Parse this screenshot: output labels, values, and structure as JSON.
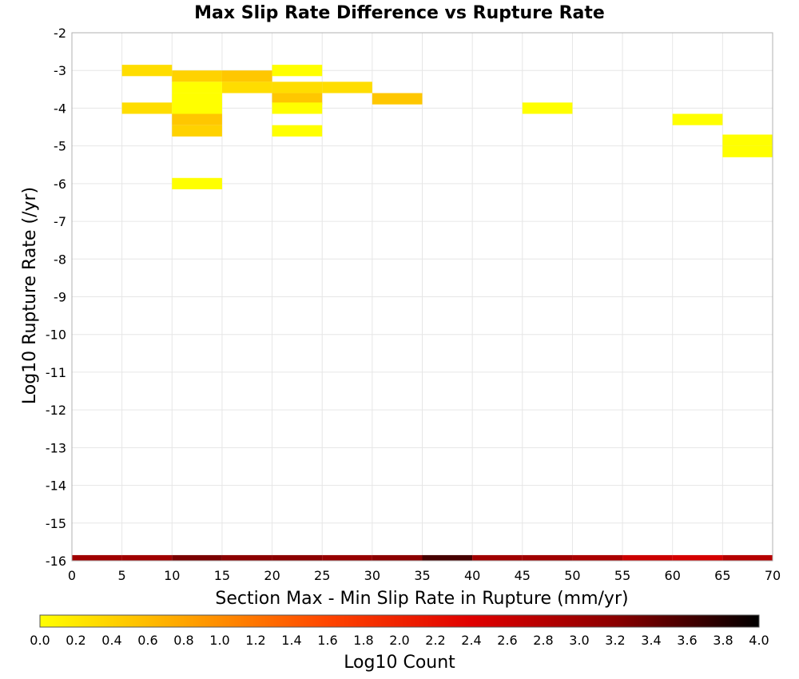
{
  "chart_data": {
    "type": "heatmap",
    "title": "Max Slip Rate Difference vs Rupture Rate",
    "xlabel": "Section Max - Min Slip Rate in Rupture (mm/yr)",
    "ylabel": "Log10 Rupture Rate (/yr)",
    "xlim": [
      0,
      70
    ],
    "ylim": [
      -16,
      -2
    ],
    "x_ticks": [
      0,
      5,
      10,
      15,
      20,
      25,
      30,
      35,
      40,
      45,
      50,
      55,
      60,
      65,
      70
    ],
    "y_ticks": [
      -2,
      -3,
      -4,
      -5,
      -6,
      -7,
      -8,
      -9,
      -10,
      -11,
      -12,
      -13,
      -14,
      -15,
      -16
    ],
    "grid": true,
    "x_bin_width": 5,
    "y_bin_height": 0.3,
    "cells": [
      {
        "x": 5,
        "y": -3.0,
        "value": 0.3
      },
      {
        "x": 20,
        "y": -3.0,
        "value": 0.0
      },
      {
        "x": 10,
        "y": -3.15,
        "value": 0.4
      },
      {
        "x": 15,
        "y": -3.15,
        "value": 0.5
      },
      {
        "x": 10,
        "y": -3.45,
        "value": 0.0
      },
      {
        "x": 15,
        "y": -3.45,
        "value": 0.3
      },
      {
        "x": 20,
        "y": -3.45,
        "value": 0.3
      },
      {
        "x": 25,
        "y": -3.45,
        "value": 0.3
      },
      {
        "x": 10,
        "y": -3.75,
        "value": 0.0
      },
      {
        "x": 20,
        "y": -3.75,
        "value": 0.5
      },
      {
        "x": 30,
        "y": -3.75,
        "value": 0.5
      },
      {
        "x": 5,
        "y": -4.0,
        "value": 0.3
      },
      {
        "x": 10,
        "y": -4.0,
        "value": 0.0
      },
      {
        "x": 20,
        "y": -4.0,
        "value": 0.0
      },
      {
        "x": 45,
        "y": -4.0,
        "value": 0.0
      },
      {
        "x": 10,
        "y": -4.3,
        "value": 0.5
      },
      {
        "x": 60,
        "y": -4.3,
        "value": 0.0
      },
      {
        "x": 10,
        "y": -4.6,
        "value": 0.4
      },
      {
        "x": 20,
        "y": -4.6,
        "value": 0.0
      },
      {
        "x": 65,
        "y": -4.85,
        "value": 0.0
      },
      {
        "x": 65,
        "y": -5.15,
        "value": 0.0
      },
      {
        "x": 10,
        "y": -6.0,
        "value": 0.0
      },
      {
        "x": 0,
        "y": -16.0,
        "value": 3.0
      },
      {
        "x": 5,
        "y": -16.0,
        "value": 3.0
      },
      {
        "x": 10,
        "y": -16.0,
        "value": 3.3
      },
      {
        "x": 15,
        "y": -16.0,
        "value": 3.2
      },
      {
        "x": 20,
        "y": -16.0,
        "value": 3.2
      },
      {
        "x": 25,
        "y": -16.0,
        "value": 3.1
      },
      {
        "x": 30,
        "y": -16.0,
        "value": 3.2
      },
      {
        "x": 35,
        "y": -16.0,
        "value": 3.6
      },
      {
        "x": 40,
        "y": -16.0,
        "value": 3.0
      },
      {
        "x": 45,
        "y": -16.0,
        "value": 3.0
      },
      {
        "x": 50,
        "y": -16.0,
        "value": 2.9
      },
      {
        "x": 55,
        "y": -16.0,
        "value": 2.6
      },
      {
        "x": 60,
        "y": -16.0,
        "value": 2.5
      },
      {
        "x": 65,
        "y": -16.0,
        "value": 2.8
      }
    ],
    "colorbar": {
      "label": "Log10 Count",
      "min": 0.0,
      "max": 4.0,
      "ticks": [
        "0.0",
        "0.2",
        "0.4",
        "0.6",
        "0.8",
        "1.0",
        "1.2",
        "1.4",
        "1.6",
        "1.8",
        "2.0",
        "2.2",
        "2.4",
        "2.6",
        "2.8",
        "3.0",
        "3.2",
        "3.4",
        "3.6",
        "3.8",
        "4.0"
      ],
      "colors": [
        "#ffff00",
        "#ffa500",
        "#ff4500",
        "#e00000",
        "#8b0000",
        "#000000"
      ]
    }
  }
}
